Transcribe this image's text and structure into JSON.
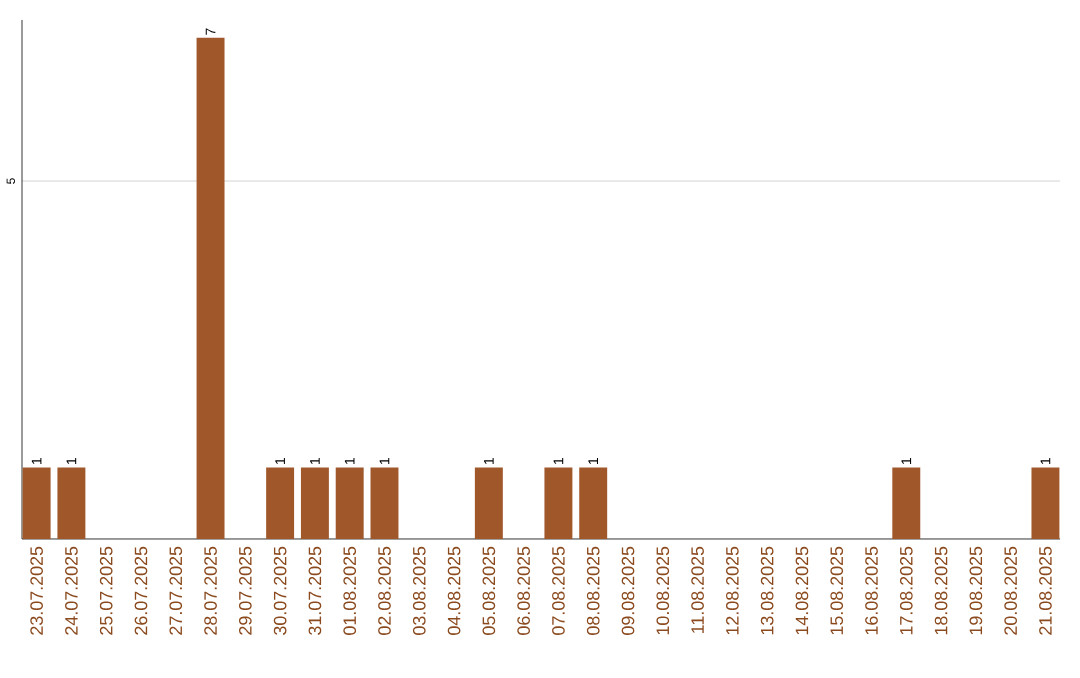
{
  "chart_data": {
    "type": "bar",
    "categories": [
      "23.07.2025",
      "24.07.2025",
      "25.07.2025",
      "26.07.2025",
      "27.07.2025",
      "28.07.2025",
      "29.07.2025",
      "30.07.2025",
      "31.07.2025",
      "01.08.2025",
      "02.08.2025",
      "03.08.2025",
      "04.08.2025",
      "05.08.2025",
      "06.08.2025",
      "07.08.2025",
      "08.08.2025",
      "09.08.2025",
      "10.08.2025",
      "11.08.2025",
      "12.08.2025",
      "13.08.2025",
      "14.08.2025",
      "15.08.2025",
      "16.08.2025",
      "17.08.2025",
      "18.08.2025",
      "19.08.2025",
      "20.08.2025",
      "21.08.2025"
    ],
    "values": [
      1,
      1,
      0,
      0,
      0,
      7,
      0,
      1,
      1,
      1,
      1,
      0,
      0,
      1,
      0,
      1,
      1,
      0,
      0,
      0,
      0,
      0,
      0,
      0,
      0,
      1,
      0,
      0,
      0,
      1
    ],
    "value_labels": [
      "1",
      "1",
      null,
      null,
      null,
      "7",
      null,
      "1",
      "1",
      "1",
      "1",
      null,
      null,
      "1",
      null,
      "1",
      "1",
      null,
      null,
      null,
      null,
      null,
      null,
      null,
      null,
      "1",
      null,
      null,
      null,
      "1"
    ],
    "color": "#a0572a",
    "ylim": [
      0,
      7.25
    ],
    "yticks": [
      5
    ],
    "grid": "y"
  }
}
